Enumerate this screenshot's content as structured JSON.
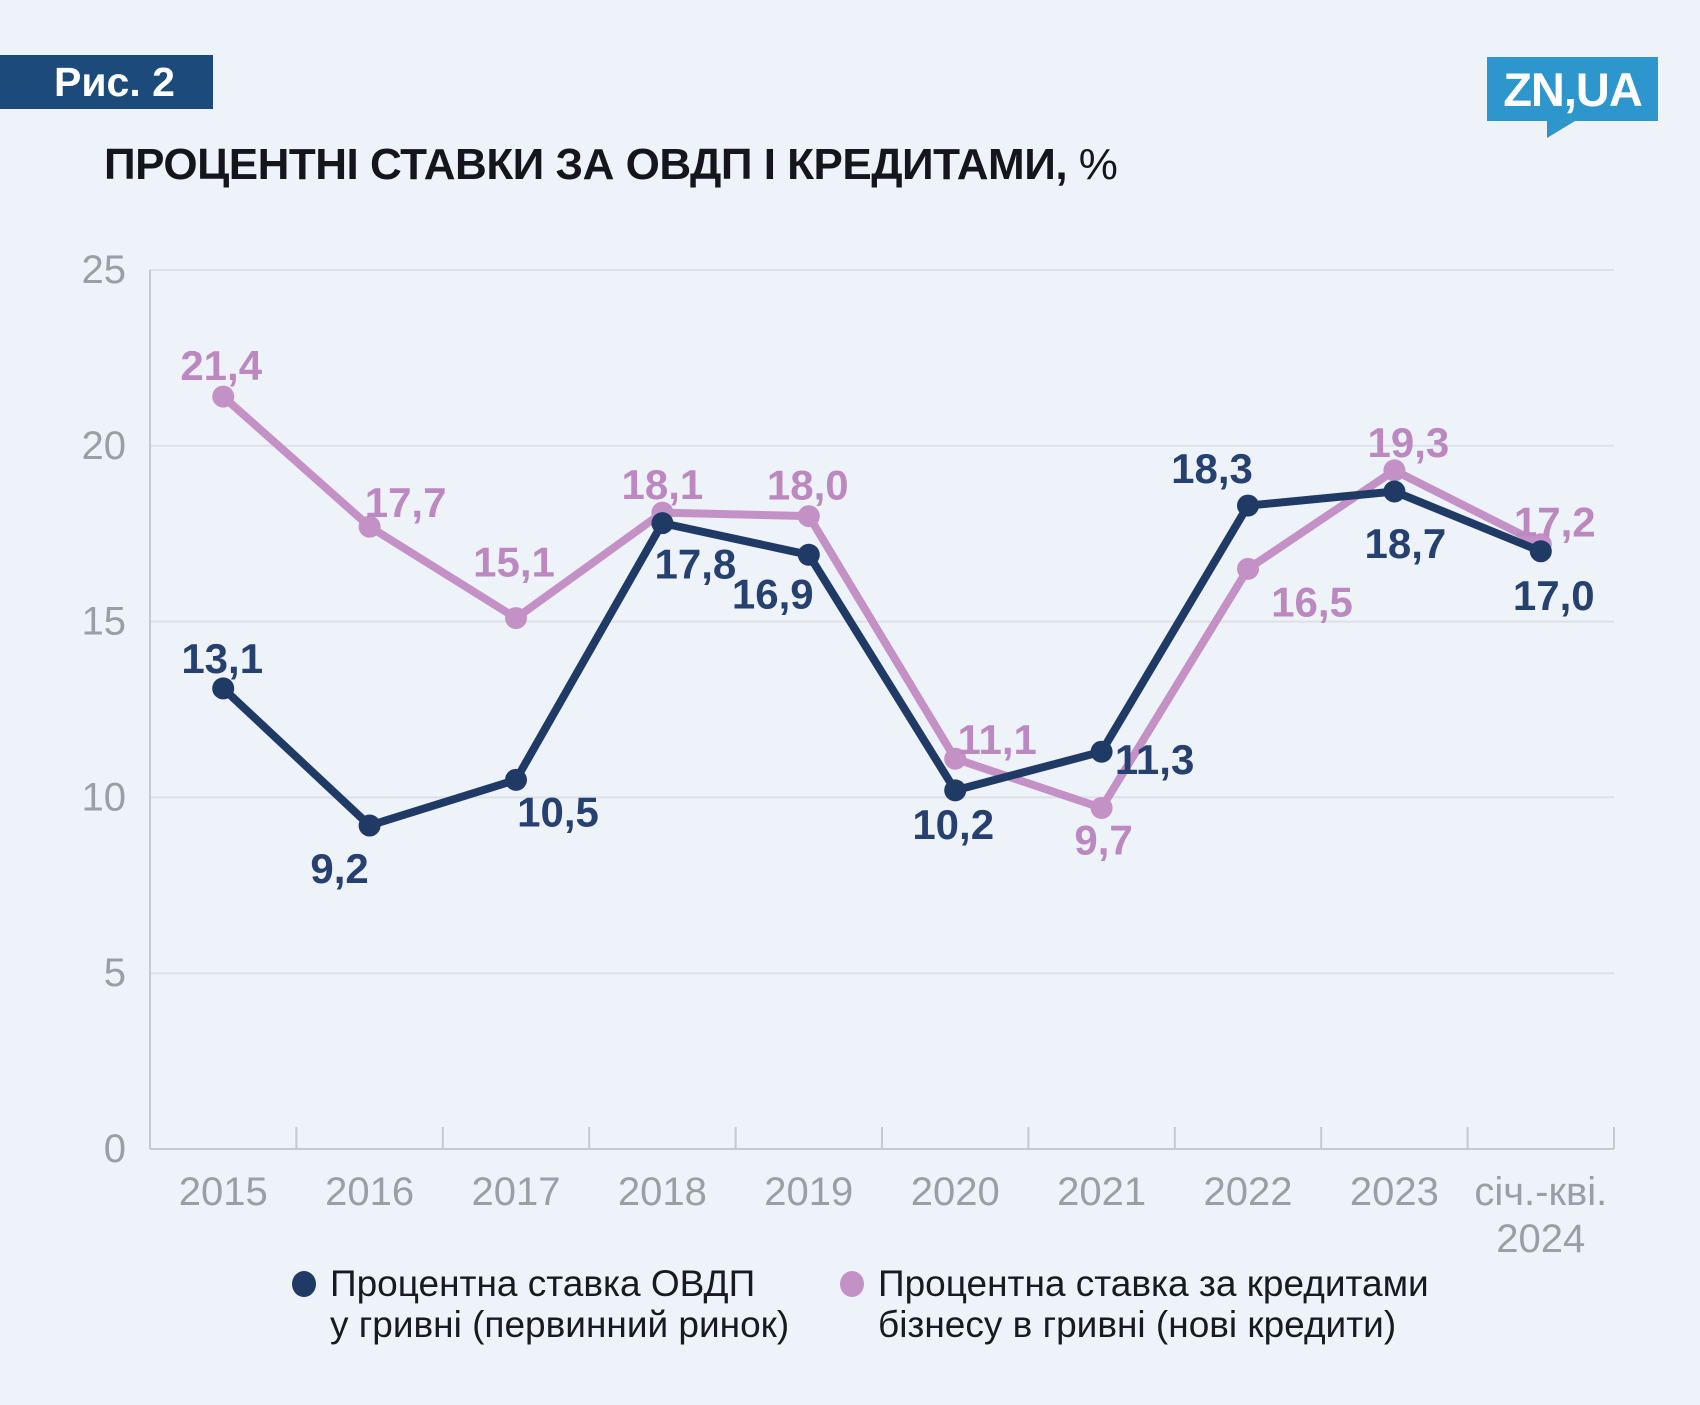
{
  "figure_label": "Рис. 2",
  "logo_text": "ZN,UA",
  "title": "ПРОЦЕНТНІ СТАВКИ ЗА ОВДП І КРЕДИТАМИ,",
  "title_suffix": " %",
  "colors": {
    "background": "#eef2f9",
    "badge_bg": "#1c4a7b",
    "logo_bg": "#2d96cd",
    "series_ovdp": "#203a66",
    "series_loans": "#c491c6"
  },
  "chart_data": {
    "type": "line",
    "categories": [
      "2015",
      "2016",
      "2017",
      "2018",
      "2019",
      "2020",
      "2021",
      "2022",
      "2023",
      "січ.-кві.\n2024"
    ],
    "series": [
      {
        "name": "Процентна ставка ОВДП у гривні (первинний ринок)",
        "color": "#203a66",
        "label_color": "#26406f",
        "values": [
          13.1,
          9.2,
          10.5,
          17.8,
          16.9,
          10.2,
          11.3,
          18.3,
          18.7,
          17.0
        ],
        "labels": [
          "13,1",
          "9,2",
          "10,5",
          "17,8",
          "16,9",
          "10,2",
          "11,3",
          "18,3",
          "18,7",
          "17,0"
        ]
      },
      {
        "name": "Процентна ставка за кредитами бізнесу в гривні (нові кредити)",
        "color": "#c491c6",
        "label_color": "#bc88c0",
        "values": [
          21.4,
          17.7,
          15.1,
          18.1,
          18.0,
          11.1,
          9.7,
          16.5,
          19.3,
          17.2
        ],
        "labels": [
          "21,4",
          "17,7",
          "15,1",
          "18,1",
          "18,0",
          "11,1",
          "9,7",
          "16,5",
          "19,3",
          "17,2"
        ]
      }
    ],
    "ylim": [
      0,
      25
    ],
    "yticks": [
      0,
      5,
      10,
      15,
      20,
      25
    ],
    "grid": true,
    "legend_position": "bottom",
    "value_decimal_separator": ","
  },
  "legend": {
    "items": [
      {
        "label_line1": "Процентна ставка ОВДП",
        "label_line2": "у гривні (первинний ринок)"
      },
      {
        "label_line1": "Процентна ставка за кредитами",
        "label_line2": "бізнесу в гривні (нові кредити)"
      }
    ]
  }
}
